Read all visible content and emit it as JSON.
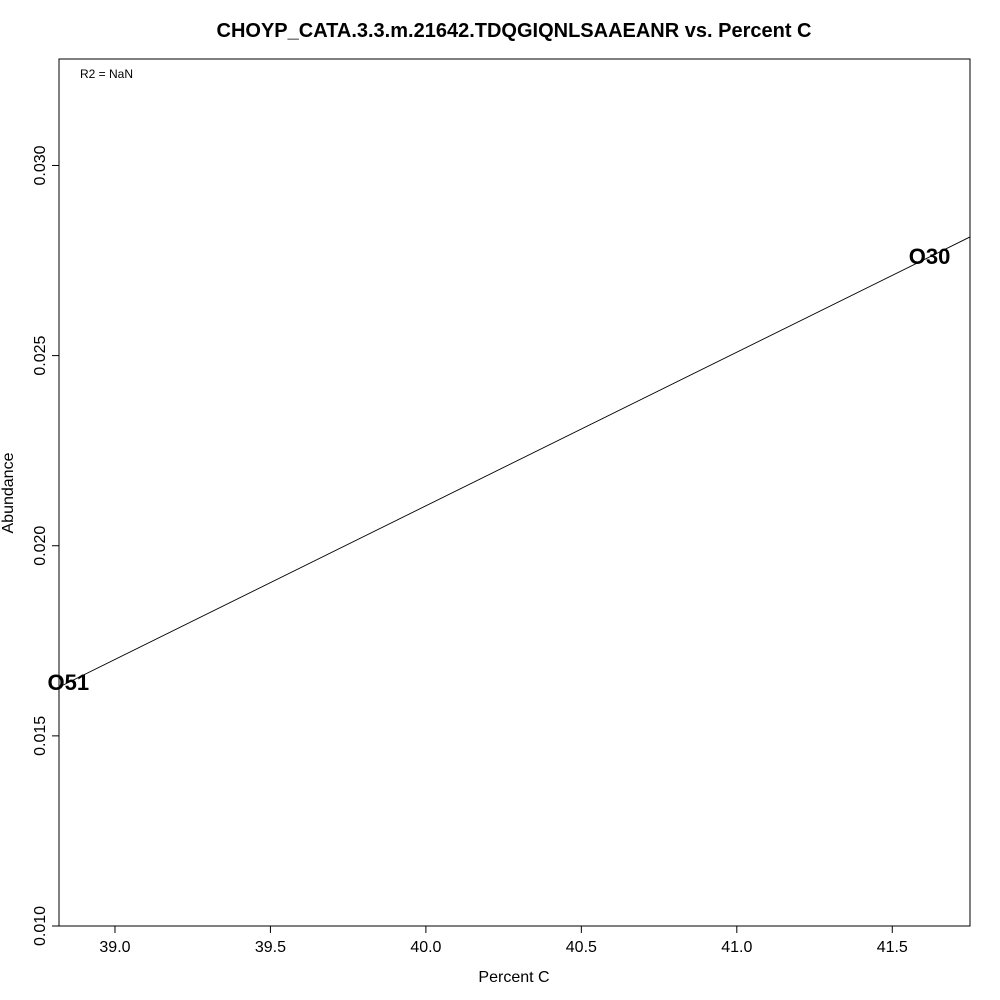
{
  "chart_data": {
    "type": "scatter",
    "title": "CHOYP_CATA.3.3.m.21642.TDQGIQNLSAAEANR vs. Percent C",
    "xlabel": "Percent C",
    "ylabel": "Abundance",
    "xlim": [
      38.82,
      41.75
    ],
    "ylim": [
      0.01,
      0.0328
    ],
    "x_ticks": [
      "39.0",
      "39.5",
      "40.0",
      "40.5",
      "41.0",
      "41.5"
    ],
    "y_ticks": [
      "0.010",
      "0.015",
      "0.020",
      "0.025",
      "0.030"
    ],
    "annotation": "R2 = NaN",
    "points": [
      {
        "label": "O51",
        "x": 38.85,
        "y": 0.0164
      },
      {
        "label": "O30",
        "x": 41.62,
        "y": 0.0276
      }
    ],
    "fit_line": {
      "slope": 0.00404,
      "intercept": -0.14055
    },
    "grid": false
  }
}
